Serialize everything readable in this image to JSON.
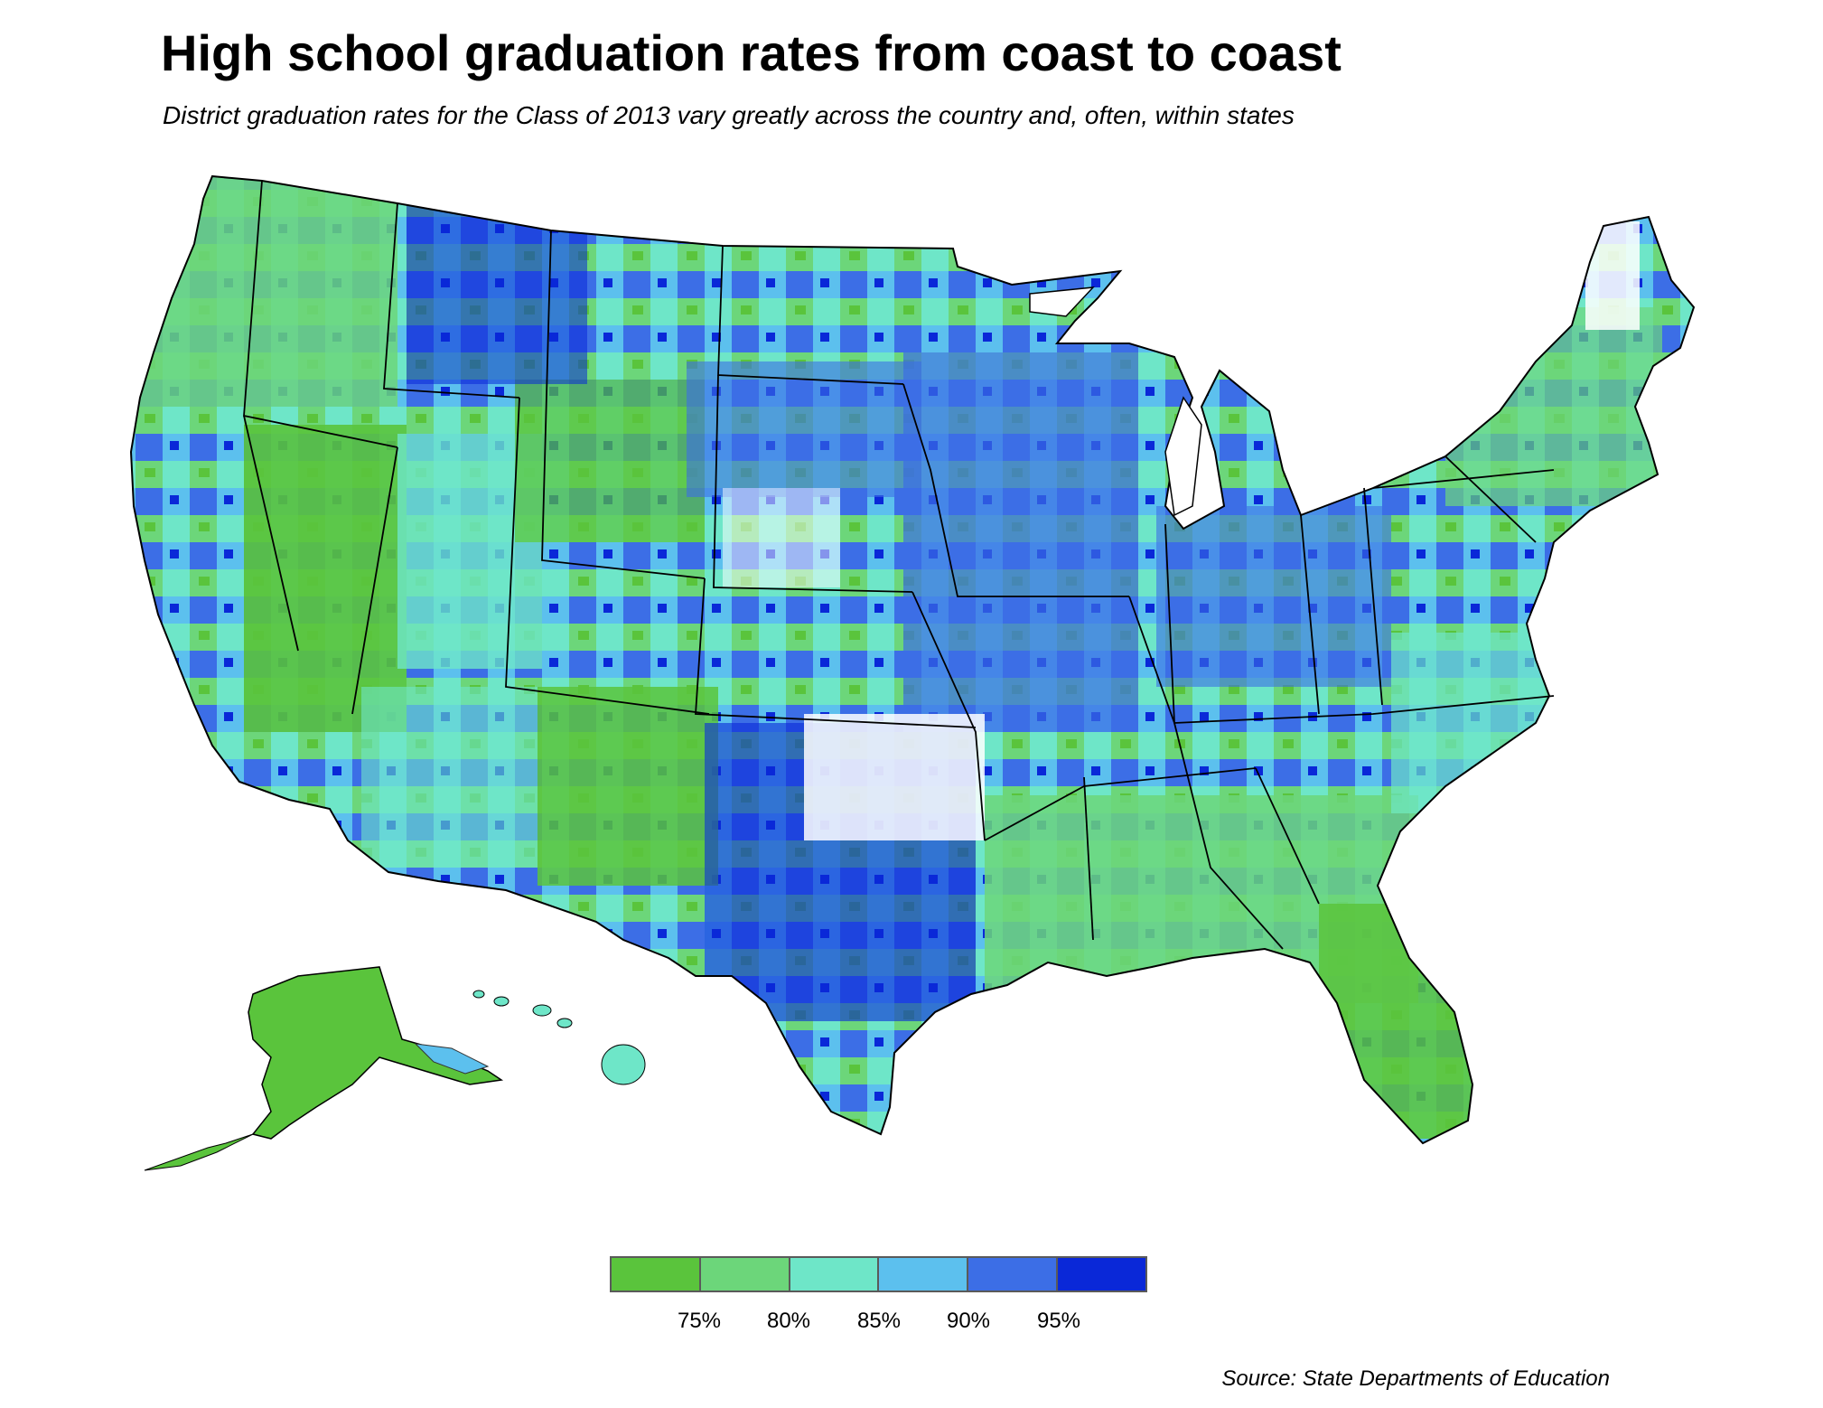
{
  "header": {
    "title": "High school graduation rates from coast to coast",
    "subtitle": "District graduation rates for the Class of 2013 vary greatly across the country and, often, within states"
  },
  "legend": {
    "colors": [
      "#5ac43c",
      "#6cd67a",
      "#6ee6c8",
      "#5cc0ee",
      "#3c6ee6",
      "#0a28d8"
    ],
    "labels": [
      "75%",
      "80%",
      "85%",
      "90%",
      "95%"
    ]
  },
  "source": "Source: State Departments of Education",
  "map": {
    "regions": [
      "contiguous-us",
      "alaska",
      "hawaii"
    ],
    "no_data_color": "#ffffff",
    "border_color": "#000000"
  }
}
